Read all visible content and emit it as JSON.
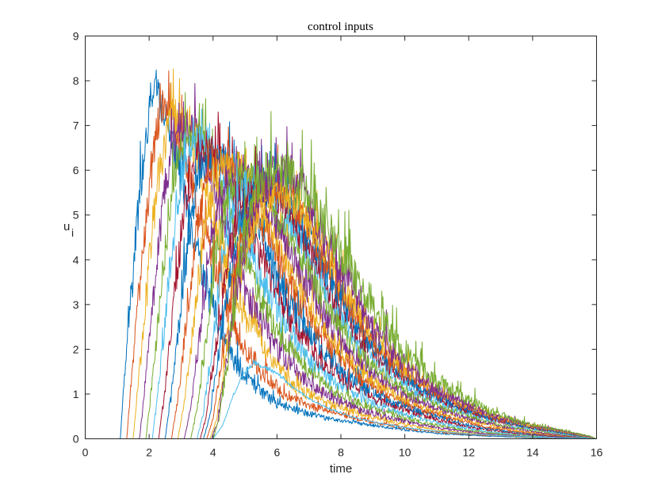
{
  "chart_data": {
    "type": "line",
    "title": "control inputs",
    "xlabel": "time",
    "ylabel": "u",
    "ylabel_subscript": "i",
    "xlim": [
      0,
      16
    ],
    "ylim": [
      0,
      9
    ],
    "xticks": [
      0,
      2,
      4,
      6,
      8,
      10,
      12,
      14,
      16
    ],
    "yticks": [
      0,
      1,
      2,
      3,
      4,
      5,
      6,
      7,
      8,
      9
    ],
    "grid": false,
    "legend": "none",
    "colors": [
      "#0072BD",
      "#D95319",
      "#EDB120",
      "#7E2F8E",
      "#77AC30",
      "#4DBEEE",
      "#A2142F"
    ],
    "series": [
      {
        "x": [
          0,
          1.1,
          1.3,
          1.6,
          1.9,
          2.2,
          2.8,
          3.4,
          4.0,
          4.6,
          5.2,
          6.0,
          7.0,
          8.0,
          9.0,
          10.0,
          11.0,
          12.0,
          14.0,
          16.0
        ],
        "values": [
          0,
          0,
          2.2,
          4.6,
          6.8,
          7.8,
          6.5,
          4.5,
          2.9,
          1.8,
          1.2,
          0.8,
          0.55,
          0.4,
          0.3,
          0.2,
          0.12,
          0.08,
          0.02,
          0
        ],
        "noise": 0.7
      },
      {
        "x": [
          0,
          1.3,
          1.5,
          1.8,
          2.1,
          2.4,
          3.0,
          3.6,
          4.2,
          4.8,
          5.4,
          6.2,
          7.2,
          8.2,
          9.2,
          10.2,
          11.2,
          12.2,
          14.0,
          16.0
        ],
        "values": [
          0,
          0,
          1.8,
          4.2,
          6.2,
          7.5,
          6.7,
          4.9,
          3.4,
          2.3,
          1.6,
          1.0,
          0.7,
          0.5,
          0.35,
          0.22,
          0.14,
          0.09,
          0.03,
          0
        ],
        "noise": 0.7
      },
      {
        "x": [
          0,
          1.5,
          1.7,
          2.0,
          2.3,
          2.7,
          3.3,
          3.9,
          4.5,
          5.1,
          5.7,
          6.5,
          7.4,
          8.4,
          9.4,
          10.4,
          11.4,
          12.4,
          14.0,
          16.0
        ],
        "values": [
          0,
          0,
          1.5,
          4.0,
          6.0,
          7.3,
          6.8,
          5.2,
          3.7,
          2.6,
          1.9,
          1.2,
          0.85,
          0.6,
          0.4,
          0.26,
          0.16,
          0.1,
          0.03,
          0
        ],
        "noise": 0.7
      },
      {
        "x": [
          0,
          1.7,
          1.9,
          2.2,
          2.5,
          2.9,
          3.5,
          4.1,
          4.7,
          5.3,
          5.9,
          6.7,
          7.6,
          8.6,
          9.6,
          10.6,
          11.6,
          12.6,
          14.2,
          16.0
        ],
        "values": [
          0,
          0,
          1.4,
          3.8,
          5.8,
          7.0,
          6.8,
          5.4,
          4.0,
          2.9,
          2.1,
          1.4,
          0.95,
          0.65,
          0.45,
          0.3,
          0.18,
          0.11,
          0.03,
          0
        ],
        "noise": 0.7
      },
      {
        "x": [
          0,
          1.9,
          2.1,
          2.4,
          2.7,
          3.1,
          3.7,
          4.3,
          4.9,
          5.5,
          6.1,
          6.9,
          7.8,
          8.8,
          9.8,
          10.8,
          11.8,
          12.8,
          14.4,
          16.0
        ],
        "values": [
          0,
          0,
          1.3,
          3.6,
          5.6,
          6.8,
          6.7,
          5.5,
          4.2,
          3.1,
          2.3,
          1.55,
          1.05,
          0.72,
          0.5,
          0.33,
          0.2,
          0.12,
          0.04,
          0
        ],
        "noise": 0.65
      },
      {
        "x": [
          0,
          2.1,
          2.3,
          2.6,
          2.9,
          3.3,
          3.9,
          4.5,
          5.1,
          5.7,
          6.3,
          7.1,
          8.0,
          9.0,
          10.0,
          11.0,
          12.0,
          13.0,
          14.6,
          16.0
        ],
        "values": [
          0,
          0,
          1.2,
          3.4,
          5.4,
          6.6,
          6.5,
          5.5,
          4.3,
          3.3,
          2.5,
          1.7,
          1.15,
          0.8,
          0.55,
          0.36,
          0.22,
          0.13,
          0.04,
          0
        ],
        "noise": 0.65
      },
      {
        "x": [
          0,
          2.3,
          2.5,
          2.8,
          3.1,
          3.5,
          4.1,
          4.7,
          5.3,
          5.9,
          6.5,
          7.3,
          8.2,
          9.2,
          10.2,
          11.2,
          12.2,
          13.2,
          14.8,
          16.0
        ],
        "values": [
          0,
          0,
          1.1,
          3.2,
          5.2,
          6.4,
          6.4,
          5.5,
          4.4,
          3.4,
          2.6,
          1.8,
          1.25,
          0.85,
          0.6,
          0.4,
          0.24,
          0.14,
          0.04,
          0
        ],
        "noise": 0.65
      },
      {
        "x": [
          0,
          2.5,
          2.7,
          3.0,
          3.3,
          3.7,
          4.3,
          4.9,
          5.5,
          6.1,
          6.7,
          7.5,
          8.4,
          9.4,
          10.4,
          11.4,
          12.4,
          13.4,
          15.0,
          16.0
        ],
        "values": [
          0,
          0,
          1.0,
          3.0,
          5.0,
          6.2,
          6.3,
          5.5,
          4.5,
          3.5,
          2.7,
          1.9,
          1.3,
          0.9,
          0.62,
          0.42,
          0.25,
          0.15,
          0.04,
          0
        ],
        "noise": 0.65
      },
      {
        "x": [
          0,
          2.7,
          2.9,
          3.2,
          3.5,
          3.9,
          4.5,
          5.1,
          5.7,
          6.3,
          6.9,
          7.7,
          8.6,
          9.6,
          10.6,
          11.6,
          12.6,
          13.6,
          15.0,
          16.0
        ],
        "values": [
          0,
          0,
          0.9,
          2.8,
          4.8,
          6.0,
          6.2,
          5.5,
          4.6,
          3.6,
          2.8,
          2.0,
          1.35,
          0.92,
          0.64,
          0.43,
          0.26,
          0.15,
          0.05,
          0
        ],
        "noise": 0.6
      },
      {
        "x": [
          0,
          2.9,
          3.1,
          3.4,
          3.7,
          4.1,
          4.7,
          5.3,
          5.9,
          6.5,
          7.1,
          7.9,
          8.8,
          9.8,
          10.8,
          11.8,
          12.8,
          13.8,
          15.2,
          16.0
        ],
        "values": [
          0,
          0,
          0.8,
          2.6,
          4.6,
          5.8,
          6.1,
          5.5,
          4.6,
          3.7,
          2.9,
          2.05,
          1.4,
          0.95,
          0.66,
          0.44,
          0.27,
          0.16,
          0.05,
          0
        ],
        "noise": 0.6
      },
      {
        "x": [
          0,
          3.1,
          3.3,
          3.6,
          3.9,
          4.3,
          4.9,
          5.5,
          6.1,
          6.7,
          7.3,
          8.1,
          9.0,
          10.0,
          11.0,
          12.0,
          13.0,
          14.0,
          15.2,
          16.0
        ],
        "values": [
          0,
          0,
          0.7,
          2.4,
          4.4,
          5.6,
          6.0,
          5.5,
          4.7,
          3.8,
          3.0,
          2.1,
          1.45,
          0.98,
          0.68,
          0.45,
          0.28,
          0.16,
          0.05,
          0
        ],
        "noise": 0.6
      },
      {
        "x": [
          0,
          3.3,
          3.5,
          3.8,
          4.1,
          4.5,
          5.1,
          5.7,
          6.3,
          6.9,
          7.5,
          8.3,
          9.2,
          10.2,
          11.2,
          12.2,
          13.2,
          14.2,
          15.4,
          16.0
        ],
        "values": [
          0,
          0,
          0.65,
          2.3,
          4.2,
          5.5,
          5.9,
          5.5,
          4.7,
          3.9,
          3.1,
          2.15,
          1.5,
          1.0,
          0.7,
          0.46,
          0.28,
          0.17,
          0.05,
          0
        ],
        "noise": 0.6
      },
      {
        "x": [
          0,
          3.5,
          3.7,
          4.0,
          4.3,
          4.7,
          5.3,
          5.9,
          6.5,
          7.1,
          7.7,
          8.5,
          9.4,
          10.4,
          11.4,
          12.4,
          13.4,
          14.4,
          15.4,
          16.0
        ],
        "values": [
          0,
          0,
          0.6,
          2.2,
          4.0,
          5.3,
          5.8,
          5.5,
          4.8,
          4.0,
          3.2,
          2.2,
          1.55,
          1.05,
          0.72,
          0.47,
          0.29,
          0.17,
          0.06,
          0
        ],
        "noise": 0.6
      },
      {
        "x": [
          0,
          3.6,
          3.8,
          4.1,
          4.4,
          4.8,
          5.4,
          6.0,
          6.6,
          7.2,
          7.8,
          8.6,
          9.5,
          10.5,
          11.5,
          12.5,
          13.5,
          14.5,
          15.5,
          16.0
        ],
        "values": [
          0,
          0,
          0.55,
          2.1,
          3.8,
          5.1,
          5.7,
          5.5,
          4.8,
          4.0,
          3.2,
          2.25,
          1.6,
          1.08,
          0.74,
          0.48,
          0.3,
          0.18,
          0.06,
          0
        ],
        "noise": 0.6
      },
      {
        "x": [
          0,
          3.7,
          3.9,
          4.2,
          4.5,
          4.9,
          5.5,
          6.1,
          6.7,
          7.3,
          7.9,
          8.7,
          9.6,
          10.6,
          11.6,
          12.6,
          13.6,
          14.6,
          15.5,
          16.0
        ],
        "values": [
          0,
          0,
          0.5,
          2.0,
          3.6,
          4.9,
          5.6,
          5.5,
          4.9,
          4.1,
          3.3,
          2.3,
          1.62,
          1.1,
          0.75,
          0.49,
          0.3,
          0.18,
          0.06,
          0
        ],
        "noise": 0.6
      },
      {
        "x": [
          0,
          3.8,
          4.0,
          4.3,
          4.6,
          5.0,
          5.6,
          6.2,
          6.8,
          7.4,
          8.0,
          8.8,
          9.7,
          10.7,
          11.7,
          12.7,
          13.7,
          14.7,
          15.6,
          16.0
        ],
        "values": [
          0,
          0,
          0.45,
          1.9,
          3.4,
          4.7,
          5.5,
          5.5,
          4.9,
          4.1,
          3.35,
          2.35,
          1.65,
          1.12,
          0.76,
          0.5,
          0.31,
          0.19,
          0.06,
          0
        ],
        "noise": 0.6
      },
      {
        "x": [
          0,
          3.9,
          4.1,
          4.4,
          4.7,
          5.1,
          5.7,
          6.3,
          6.9,
          7.5,
          8.1,
          8.9,
          9.8,
          10.8,
          11.8,
          12.8,
          13.8,
          14.8,
          15.6,
          16.0
        ],
        "values": [
          0,
          0,
          0.4,
          1.8,
          3.2,
          4.5,
          5.4,
          5.5,
          5.0,
          4.2,
          3.4,
          2.4,
          1.68,
          1.14,
          0.78,
          0.5,
          0.31,
          0.19,
          0.06,
          0
        ],
        "noise": 0.6
      },
      {
        "x": [
          0,
          3.95,
          4.15,
          4.45,
          4.75,
          5.15,
          5.75,
          6.35,
          6.95,
          7.55,
          8.15,
          8.95,
          9.85,
          10.85,
          11.85,
          12.85,
          13.85,
          14.85,
          15.7,
          16.0
        ],
        "values": [
          0,
          0,
          0.4,
          1.9,
          3.5,
          4.9,
          5.8,
          6.0,
          5.3,
          4.4,
          3.6,
          2.5,
          1.7,
          1.15,
          0.78,
          0.5,
          0.31,
          0.19,
          0.06,
          0
        ],
        "noise": 0.7
      },
      {
        "x": [
          0,
          4.0,
          4.2,
          4.5,
          4.8,
          5.2,
          5.8,
          6.4,
          7.0,
          7.6,
          8.2,
          9.0,
          9.9,
          10.9,
          11.9,
          12.9,
          13.9,
          14.9,
          15.8,
          16.0
        ],
        "values": [
          0,
          0,
          0.45,
          2.0,
          3.8,
          5.3,
          6.1,
          5.9,
          5.4,
          4.6,
          3.9,
          2.9,
          2.0,
          1.35,
          0.9,
          0.55,
          0.32,
          0.19,
          0.06,
          0
        ],
        "noise": 0.8
      },
      {
        "x": [
          0,
          4.0,
          4.3,
          4.6,
          4.9,
          5.3,
          5.9,
          6.5,
          7.1,
          7.7,
          8.3,
          9.1,
          10.0,
          11.0,
          12.0,
          13.0,
          14.0,
          15.0,
          15.8,
          16.0
        ],
        "values": [
          0,
          0,
          0.3,
          0.9,
          1.4,
          1.7,
          1.5,
          1.15,
          0.85,
          0.65,
          0.5,
          0.36,
          0.25,
          0.17,
          0.11,
          0.07,
          0.04,
          0.02,
          0.01,
          0
        ],
        "noise": 0.15
      }
    ]
  }
}
